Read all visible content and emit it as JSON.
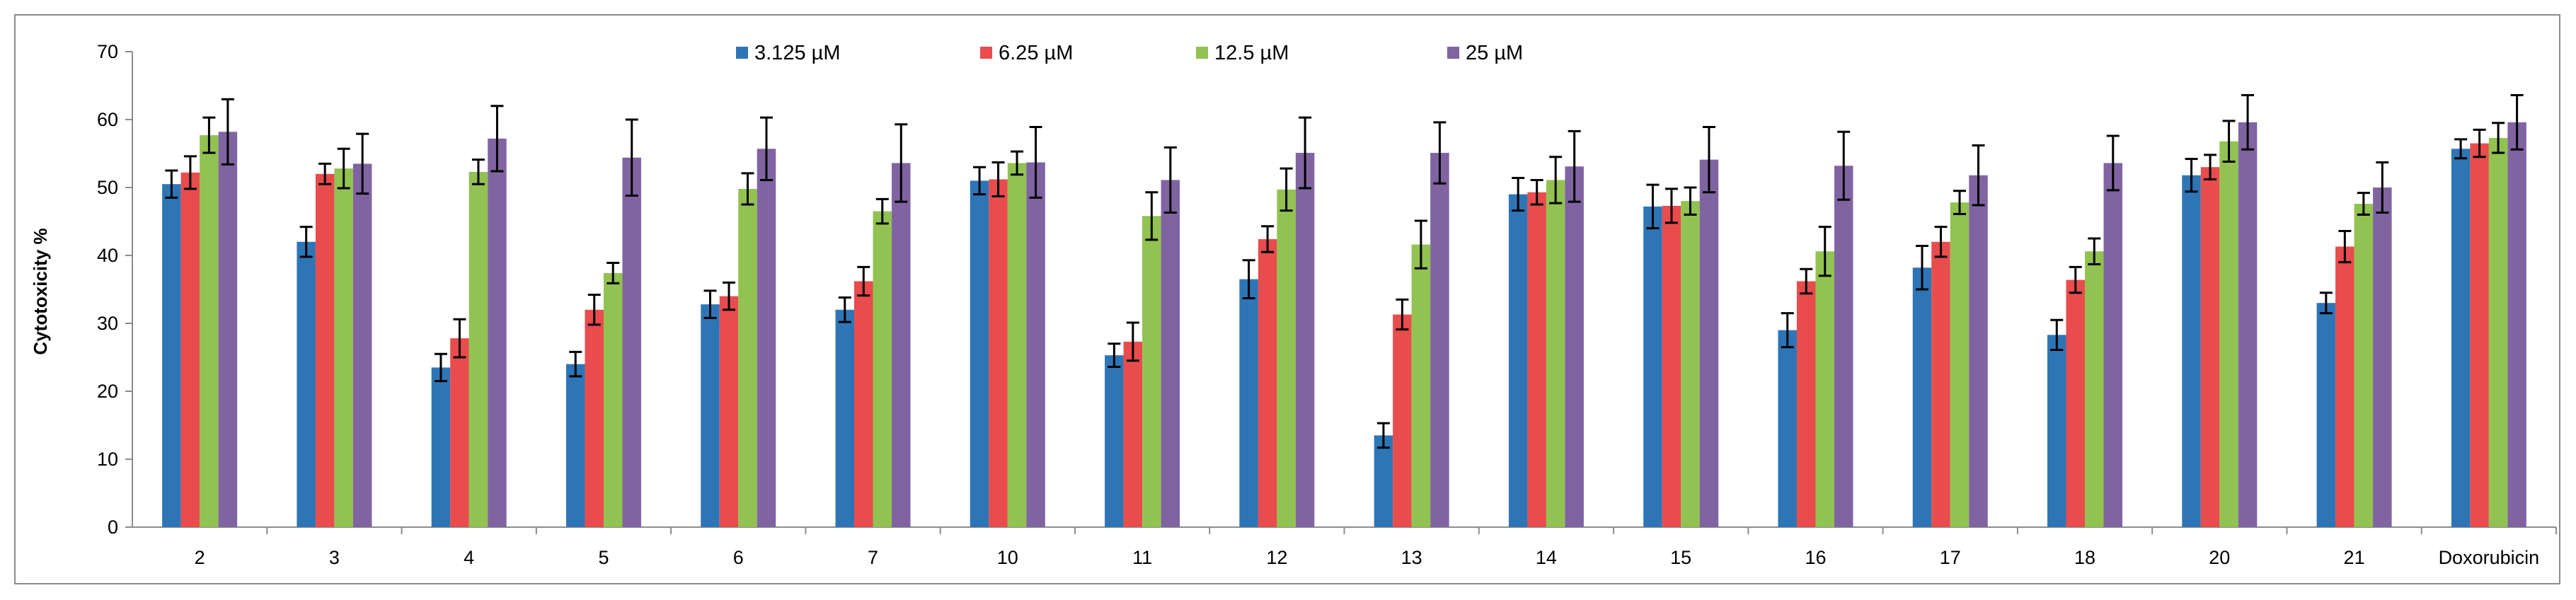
{
  "chart_data": {
    "type": "bar",
    "title": "",
    "xlabel": "",
    "ylabel": "Cytotoxicity %",
    "ylim": [
      0,
      70
    ],
    "yticks": [
      0,
      10,
      20,
      30,
      40,
      50,
      60,
      70
    ],
    "grid": false,
    "legend_position": "top",
    "error_bars": true,
    "categories": [
      "2",
      "3",
      "4",
      "5",
      "6",
      "7",
      "10",
      "11",
      "12",
      "13",
      "14",
      "15",
      "16",
      "17",
      "18",
      "20",
      "21",
      "Doxorubicin"
    ],
    "series": [
      {
        "name": "3.125 µM",
        "color": "#2e75b6",
        "values": [
          50.5,
          42,
          23.5,
          24,
          32.8,
          32,
          51,
          25.3,
          36.5,
          13.5,
          49,
          47.2,
          29,
          38.2,
          28.3,
          51.8,
          33,
          55.7
        ],
        "errors": [
          2,
          2.2,
          2,
          1.8,
          2,
          1.8,
          2,
          1.7,
          2.8,
          1.8,
          2.4,
          3.2,
          2.5,
          3.2,
          2.2,
          2.4,
          1.5,
          1.4
        ]
      },
      {
        "name": "6.25 µM",
        "color": "#e84c4c",
        "values": [
          52.2,
          52,
          27.8,
          32,
          34,
          36.2,
          51.2,
          27.3,
          42.4,
          31.3,
          49.3,
          47.3,
          36.2,
          42,
          36.4,
          53,
          41.3,
          56.5
        ],
        "errors": [
          2.4,
          1.5,
          2.8,
          2.2,
          2,
          2.1,
          2.5,
          2.8,
          1.9,
          2.2,
          1.8,
          2.5,
          1.8,
          2.2,
          1.9,
          1.8,
          2.3,
          2
        ]
      },
      {
        "name": "12.5 µM",
        "color": "#92c251",
        "values": [
          57.7,
          52.8,
          52.3,
          37.4,
          49.8,
          46.5,
          53.6,
          45.8,
          49.7,
          41.6,
          51.1,
          48,
          40.6,
          47.8,
          40.6,
          56.8,
          47.6,
          57.3
        ],
        "errors": [
          2.6,
          2.9,
          1.8,
          1.5,
          2.3,
          1.8,
          1.7,
          3.5,
          3.1,
          3.5,
          3.4,
          2,
          3.6,
          1.7,
          1.9,
          3,
          1.6,
          2.2
        ]
      },
      {
        "name": "25 µM",
        "color": "#8064a2",
        "values": [
          58.2,
          53.5,
          57.2,
          54.4,
          55.7,
          53.6,
          53.7,
          51.1,
          55.1,
          55.1,
          53.1,
          54.1,
          53.2,
          51.8,
          53.6,
          59.6,
          50,
          59.6
        ],
        "errors": [
          4.8,
          4.4,
          4.8,
          5.6,
          4.6,
          5.7,
          5.2,
          4.8,
          5.2,
          4.5,
          5.2,
          4.8,
          5,
          4.4,
          4,
          4,
          3.7,
          4
        ]
      }
    ]
  }
}
